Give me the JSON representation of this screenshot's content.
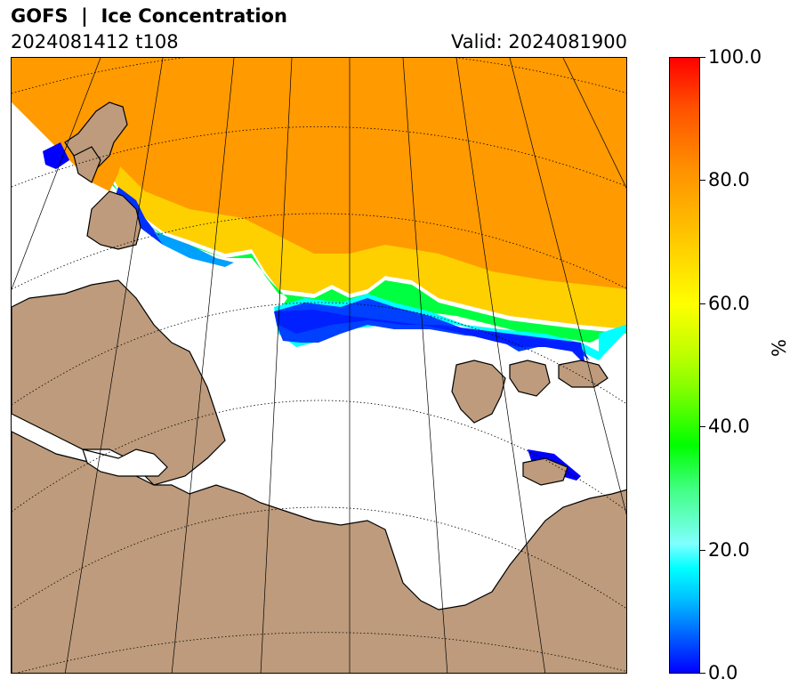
{
  "header": {
    "title": "GOFS  |  Ice Concentration",
    "run": "2024081412 t108",
    "valid": "Valid: 2024081900"
  },
  "map": {
    "land_color": "#bd9b7c",
    "ocean_color": "#ffffff",
    "ice_color_high": "#ff8c00",
    "ice_color_mid": "#ffff00",
    "ice_color_low": "#0000ff"
  },
  "colorbar": {
    "unit_label": "%",
    "min": 0.0,
    "max": 100.0,
    "tick_labels": [
      "100.0",
      "80.0",
      "60.0",
      "40.0",
      "20.0",
      "0.0"
    ],
    "colors": [
      "#0000ff",
      "#00ffff",
      "#00ff00",
      "#ffff00",
      "#ff8c00",
      "#ff0000"
    ]
  }
}
